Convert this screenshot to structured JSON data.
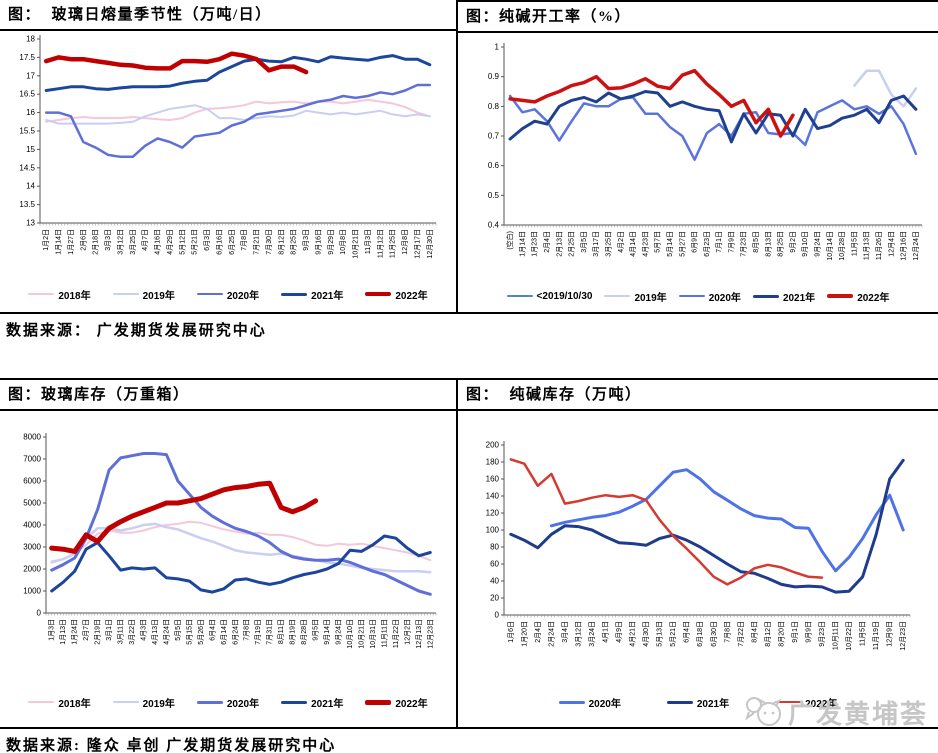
{
  "watermark": {
    "text": "广发黄埔荟",
    "logo_icon": "chat-cat-logo"
  },
  "sources": {
    "top": "数据来源：  广发期货发展研究中心",
    "bottom": "数据来源: 隆众 卓创 广发期货发展研究中心"
  },
  "chart_data": [
    {
      "type": "line",
      "title": "图：  玻璃日熔量季节性（万吨/日）",
      "ylabel": "万吨/日",
      "ylim": [
        13,
        18
      ],
      "y_ticks": [
        "18",
        "17.5",
        "17",
        "16.5",
        "16",
        "15.5",
        "15",
        "14.5",
        "14",
        "13.5",
        "13"
      ],
      "grid": false,
      "legend_position": "bottom",
      "x_labels": [
        "1月2日",
        "1月14日",
        "1月27日",
        "2月6日",
        "2月18日",
        "3月3日",
        "3月12日",
        "3月25日",
        "4月7日",
        "4月16日",
        "4月29日",
        "5月12日",
        "5月21日",
        "6月3日",
        "6月16日",
        "6月25日",
        "7月8日",
        "7月21日",
        "7月30日",
        "8月12日",
        "8月25日",
        "9月3日",
        "9月16日",
        "9月29日",
        "10月8日",
        "10月21日",
        "11月3日",
        "11月12日",
        "11月25日",
        "12月8日",
        "12月17日",
        "12月30日"
      ],
      "series": [
        {
          "name": "2018年",
          "color": "#f4c7d9",
          "width": 2,
          "values": [
            15.75,
            15.8,
            15.85,
            15.88,
            15.85,
            15.85,
            15.85,
            15.88,
            15.85,
            15.82,
            15.8,
            15.85,
            16.0,
            16.1,
            16.12,
            16.15,
            16.2,
            16.3,
            16.25,
            16.28,
            16.3,
            16.25,
            16.3,
            16.3,
            16.25,
            16.3,
            16.35,
            16.3,
            16.25,
            16.15,
            16.0,
            15.9
          ]
        },
        {
          "name": "2019年",
          "color": "#c9cff0",
          "width": 2,
          "values": [
            15.8,
            15.7,
            15.7,
            15.7,
            15.7,
            15.7,
            15.72,
            15.75,
            15.9,
            16.0,
            16.1,
            16.15,
            16.2,
            16.1,
            15.85,
            15.85,
            15.8,
            15.85,
            15.9,
            15.88,
            15.92,
            16.05,
            16.0,
            15.95,
            16.0,
            15.95,
            16.0,
            16.05,
            15.95,
            15.9,
            15.95,
            15.9
          ]
        },
        {
          "name": "2020年",
          "color": "#5f6fd8",
          "width": 2.5,
          "values": [
            16.0,
            16.0,
            15.9,
            15.2,
            15.05,
            14.85,
            14.8,
            14.8,
            15.1,
            15.3,
            15.2,
            15.05,
            15.35,
            15.4,
            15.45,
            15.65,
            15.75,
            15.95,
            16.0,
            16.05,
            16.1,
            16.2,
            16.3,
            16.35,
            16.45,
            16.4,
            16.45,
            16.55,
            16.5,
            16.6,
            16.75,
            16.75
          ]
        },
        {
          "name": "2021年",
          "color": "#1c469b",
          "width": 3,
          "values": [
            16.6,
            16.65,
            16.7,
            16.7,
            16.65,
            16.63,
            16.67,
            16.7,
            16.7,
            16.7,
            16.72,
            16.8,
            16.85,
            16.88,
            17.1,
            17.25,
            17.4,
            17.45,
            17.4,
            17.38,
            17.5,
            17.45,
            17.38,
            17.52,
            17.48,
            17.45,
            17.42,
            17.5,
            17.55,
            17.45,
            17.45,
            17.3
          ]
        },
        {
          "name": "2022年",
          "color": "#c00000",
          "width": 4.5,
          "values": [
            17.4,
            17.5,
            17.45,
            17.45,
            17.4,
            17.35,
            17.3,
            17.28,
            17.22,
            17.2,
            17.2,
            17.4,
            17.4,
            17.38,
            17.45,
            17.6,
            17.55,
            17.45,
            17.15,
            17.25,
            17.25,
            17.1
          ]
        }
      ]
    },
    {
      "type": "line",
      "title": "图：纯碱开工率（%）",
      "ylabel": "%",
      "ylim": [
        0.4,
        1
      ],
      "y_ticks": [
        "1",
        "0.9",
        "0.8",
        "0.7",
        "0.6",
        "0.5",
        "0.4"
      ],
      "grid": false,
      "legend_position": "bottom",
      "x_labels": [
        "(空白)",
        "1月14日",
        "1月23日",
        "2月4日",
        "2月13日",
        "2月25日",
        "3月5日",
        "3月17日",
        "3月25日",
        "4月2日",
        "4月14日",
        "4月23日",
        "5月7日",
        "5月14日",
        "5月27日",
        "6月9日",
        "6月23日",
        "7月1日",
        "7月9日",
        "7月23日",
        "8月5日",
        "8月13日",
        "8月25日",
        "9月2日",
        "9月10日",
        "9月24日",
        "10月14日",
        "10月28日",
        "11月5日",
        "11月13日",
        "11月26日",
        "12月4日",
        "12月16日",
        "12月24日"
      ],
      "series": [
        {
          "name": "<2019/10/30",
          "color": "#4e86c0",
          "width": 2.5,
          "values": []
        },
        {
          "name": "2019年",
          "color": "#c9cff0",
          "width": 2.5,
          "values": [
            null,
            null,
            null,
            null,
            null,
            null,
            null,
            null,
            null,
            null,
            null,
            null,
            null,
            null,
            null,
            null,
            null,
            null,
            null,
            null,
            null,
            null,
            null,
            null,
            null,
            null,
            null,
            null,
            0.87,
            0.92,
            0.92,
            0.84,
            0.8,
            0.86
          ]
        },
        {
          "name": "2020年",
          "color": "#5b74dc",
          "width": 2.5,
          "values": [
            0.835,
            0.78,
            0.79,
            0.75,
            0.685,
            0.75,
            0.81,
            0.8,
            0.8,
            0.825,
            0.83,
            0.775,
            0.775,
            0.73,
            0.7,
            0.62,
            0.71,
            0.74,
            0.7,
            0.775,
            0.78,
            0.71,
            0.705,
            0.71,
            0.67,
            0.78,
            0.8,
            0.82,
            0.79,
            0.8,
            0.775,
            0.8,
            0.74,
            0.64
          ]
        },
        {
          "name": "2021年",
          "color": "#1f3f8f",
          "width": 3,
          "values": [
            0.69,
            0.725,
            0.75,
            0.74,
            0.8,
            0.82,
            0.83,
            0.815,
            0.845,
            0.825,
            0.835,
            0.85,
            0.845,
            0.8,
            0.815,
            0.8,
            0.79,
            0.785,
            0.68,
            0.775,
            0.71,
            0.775,
            0.77,
            0.7,
            0.79,
            0.725,
            0.735,
            0.76,
            0.77,
            0.79,
            0.745,
            0.82,
            0.835,
            0.79
          ]
        },
        {
          "name": "2022年",
          "color": "#cc1111",
          "width": 3.5,
          "values": [
            0.825,
            0.82,
            0.815,
            0.835,
            0.85,
            0.87,
            0.88,
            0.9,
            0.86,
            0.862,
            0.875,
            0.893,
            0.868,
            0.86,
            0.905,
            0.92,
            0.875,
            0.84,
            0.8,
            0.82,
            0.745,
            0.79,
            0.7,
            0.77
          ]
        }
      ]
    },
    {
      "type": "line",
      "title": "图：玻璃库存（万重箱）",
      "ylabel": "万重箱",
      "ylim": [
        0,
        8000
      ],
      "y_ticks": [
        "8000",
        "7000",
        "6000",
        "5000",
        "4000",
        "3000",
        "2000",
        "1000",
        "0"
      ],
      "grid": false,
      "legend_position": "bottom",
      "x_labels": [
        "1月3日",
        "1月13日",
        "1月24日",
        "2月7日",
        "2月19日",
        "3月1日",
        "3月11日",
        "3月22日",
        "4月3日",
        "4月13日",
        "4月24日",
        "5月5日",
        "5月15日",
        "5月26日",
        "6月4日",
        "6月14日",
        "6月24日",
        "7月8日",
        "7月19日",
        "7月31日",
        "8月11日",
        "8月19日",
        "8月28日",
        "9月5日",
        "9月14日",
        "9月24日",
        "10月10日",
        "10月21日",
        "10月31日",
        "11月11日",
        "11月22日",
        "12月2日",
        "12月13日",
        "12月23日"
      ],
      "series": [
        {
          "name": "2018年",
          "color": "#f4c7d9",
          "width": 2,
          "values": [
            2350,
            2450,
            2700,
            3100,
            3600,
            3750,
            3650,
            3650,
            3750,
            3900,
            4000,
            4050,
            4150,
            4100,
            3950,
            3800,
            3700,
            3600,
            3650,
            3550,
            3550,
            3450,
            3300,
            3100,
            3050,
            3150,
            3100,
            3150,
            3050,
            2950,
            2850,
            2750,
            2600,
            2400
          ]
        },
        {
          "name": "2019年",
          "color": "#c9cff0",
          "width": 2.5,
          "values": [
            2300,
            2450,
            2700,
            3400,
            3850,
            3850,
            3750,
            3850,
            4000,
            4050,
            3900,
            3800,
            3600,
            3400,
            3250,
            3050,
            2850,
            2750,
            2700,
            2650,
            2700,
            2600,
            2500,
            2400,
            2300,
            2250,
            2150,
            2050,
            2000,
            1950,
            1900,
            1900,
            1900,
            1850
          ]
        },
        {
          "name": "2020年",
          "color": "#5f6fd8",
          "width": 3,
          "values": [
            1950,
            2200,
            2500,
            3400,
            4700,
            6500,
            7050,
            7150,
            7250,
            7250,
            7200,
            6000,
            5400,
            4800,
            4400,
            4100,
            3850,
            3700,
            3500,
            3200,
            2800,
            2550,
            2450,
            2400,
            2400,
            2450,
            2300,
            2100,
            1900,
            1750,
            1500,
            1250,
            1000,
            850
          ]
        },
        {
          "name": "2021年",
          "color": "#1c469b",
          "width": 3,
          "values": [
            1000,
            1400,
            1900,
            2900,
            3200,
            2600,
            1950,
            2050,
            2000,
            2050,
            1600,
            1550,
            1450,
            1050,
            950,
            1100,
            1500,
            1550,
            1400,
            1300,
            1400,
            1600,
            1750,
            1850,
            2000,
            2250,
            2850,
            2800,
            3100,
            3500,
            3400,
            2950,
            2600,
            2750
          ]
        },
        {
          "name": "2022年",
          "color": "#c00000",
          "width": 5,
          "values": [
            2950,
            2900,
            2800,
            3550,
            3250,
            3850,
            4150,
            4400,
            4600,
            4800,
            5000,
            5000,
            5100,
            5200,
            5400,
            5600,
            5700,
            5750,
            5850,
            5900,
            4800,
            4600,
            4800,
            5100
          ]
        }
      ]
    },
    {
      "type": "line",
      "title": "图：  纯碱库存（万吨）",
      "ylabel": "万吨",
      "ylim": [
        0,
        200
      ],
      "y_ticks": [
        "200",
        "180",
        "160",
        "140",
        "120",
        "100",
        "80",
        "60",
        "40",
        "20",
        "0"
      ],
      "grid": false,
      "legend_position": "bottom",
      "x_labels": [
        "1月6日",
        "1月20日",
        "2月4日",
        "2月24日",
        "3月4日",
        "3月12日",
        "3月24日",
        "4月1日",
        "4月9日",
        "4月21日",
        "4月30日",
        "5月13日",
        "5月21日",
        "6月4日",
        "6月18日",
        "6月30日",
        "7月8日",
        "7月22日",
        "8月4日",
        "8月12日",
        "8月20日",
        "9月1日",
        "9月9日",
        "9月23日",
        "10月11日",
        "10月22日",
        "11月5日",
        "11月19日",
        "12月9日",
        "12月23日"
      ],
      "series": [
        {
          "name": "2020年",
          "color": "#4e73e8",
          "width": 3,
          "values": [
            null,
            null,
            null,
            105,
            109,
            112,
            115,
            117,
            121,
            128,
            136,
            152,
            168,
            171,
            160,
            145,
            135,
            125,
            117,
            114,
            113,
            103,
            102,
            75,
            52,
            68,
            90,
            118,
            141,
            100
          ]
        },
        {
          "name": "2021年",
          "color": "#1f3c8c",
          "width": 3,
          "values": [
            95,
            88,
            79,
            95,
            105,
            104,
            100,
            92,
            85,
            84,
            82,
            90,
            94,
            88,
            80,
            70,
            60,
            51,
            49,
            43,
            36,
            33,
            34,
            33,
            27,
            28,
            45,
            95,
            160,
            182
          ]
        },
        {
          "name": "2022年",
          "color": "#d23b31",
          "width": 2.5,
          "values": [
            183,
            178,
            152,
            166,
            131,
            134,
            138,
            141,
            139,
            141,
            135,
            112,
            93,
            78,
            62,
            45,
            36,
            44,
            55,
            59,
            56,
            50,
            45,
            44
          ]
        }
      ]
    }
  ]
}
